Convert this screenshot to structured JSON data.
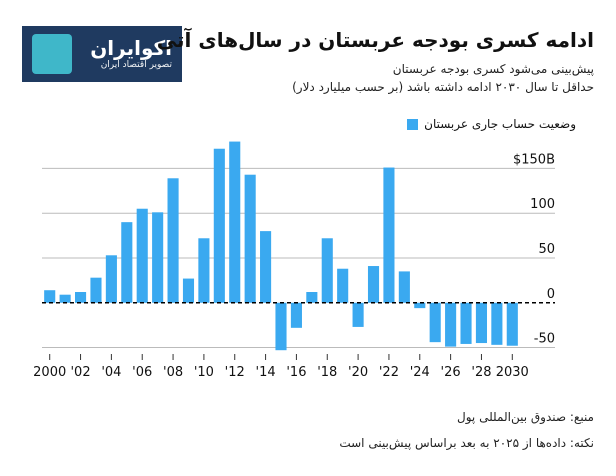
{
  "logo": {
    "name": "اکوایران",
    "tagline": "تصویر اقتصاد ایران"
  },
  "header": {
    "title": "ادامه کسری بودجه عربستان در سال‌های آتی",
    "subtitle_line1": "پیش‌بینی می‌شود کسری بودجه عربستان",
    "subtitle_line2": "حداقل تا سال ۲۰۳۰ ادامه داشته باشد (بر حسب میلیارد دلار)"
  },
  "legend": {
    "label": "وضعیت حساب جاری عربستان"
  },
  "footer": {
    "source": "منبع: صندوق بین‌المللی پول",
    "note": "نکته: داده‌ها از ۲۰۲۵ به بعد براساس پیش‌بینی است"
  },
  "colors": {
    "bar": "#3aa9f0",
    "grid": "#bbbbbb",
    "zero": "#000000",
    "logo_bg": "#1f3a60",
    "logo_mark": "#3fb7c9"
  },
  "chart_data": {
    "type": "bar",
    "x": [
      2000,
      2001,
      2002,
      2003,
      2004,
      2005,
      2006,
      2007,
      2008,
      2009,
      2010,
      2011,
      2012,
      2013,
      2014,
      2015,
      2016,
      2017,
      2018,
      2019,
      2020,
      2021,
      2022,
      2023,
      2024,
      2025,
      2026,
      2027,
      2028,
      2029,
      2030
    ],
    "values": [
      14,
      9,
      12,
      28,
      53,
      90,
      105,
      101,
      139,
      27,
      72,
      172,
      180,
      143,
      80,
      -53,
      -28,
      12,
      72,
      38,
      -27,
      41,
      151,
      35,
      -6,
      -44,
      -49,
      -46,
      -45,
      -47,
      -48
    ],
    "x_tick_labels": [
      "2000",
      "'02",
      "'04",
      "'06",
      "'08",
      "'10",
      "'12",
      "'14",
      "'16",
      "'18",
      "'20",
      "'22",
      "'24",
      "'26",
      "'28",
      "2030"
    ],
    "x_tick_years": [
      2000,
      2002,
      2004,
      2006,
      2008,
      2010,
      2012,
      2014,
      2016,
      2018,
      2020,
      2022,
      2024,
      2026,
      2028,
      2030
    ],
    "y_ticks": [
      150,
      100,
      50,
      0,
      -50
    ],
    "y_tick_labels": [
      "$150B",
      "100",
      "50",
      "0",
      "-50"
    ],
    "ylim": [
      -55,
      165
    ],
    "grid": true,
    "legend_position": "top-right"
  }
}
